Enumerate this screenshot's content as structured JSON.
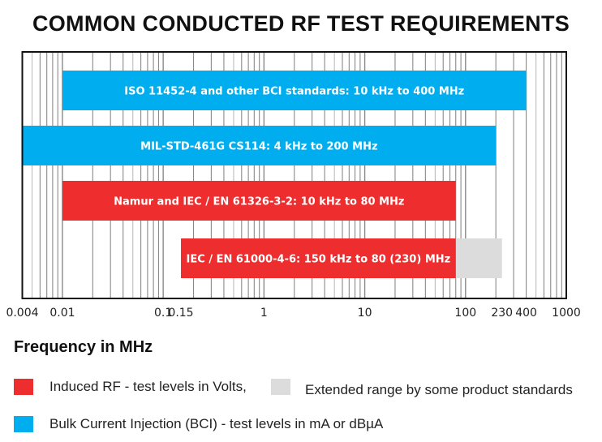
{
  "chart_data": {
    "type": "bar",
    "orientation": "horizontal-range",
    "title": "COMMON CONDUCTED RF TEST REQUIREMENTS",
    "xlabel": "Frequency in MHz",
    "xscale": "log",
    "xlim": [
      0.004,
      1000
    ],
    "xticks": [
      "0.004",
      "0.01",
      "0.1",
      "0.15",
      "1",
      "10",
      "100",
      "230",
      "400",
      "1000"
    ],
    "grid": true,
    "bars": [
      {
        "label": "ISO 11452-4 and other BCI standards: 10 kHz to 400 MHz",
        "start": 0.01,
        "end": 400,
        "category": "bci"
      },
      {
        "label": "MIL-STD-461G CS114: 4 kHz to 200 MHz",
        "start": 0.004,
        "end": 200,
        "category": "bci"
      },
      {
        "label": "Namur and IEC / EN 61326-3-2: 10 kHz to 80 MHz",
        "start": 0.01,
        "end": 80,
        "category": "induced"
      },
      {
        "label": "IEC / EN 61000-4-6: 150 kHz to 80 (230) MHz",
        "start": 0.15,
        "end": 80,
        "extended_end": 230,
        "category": "induced"
      }
    ],
    "legend": [
      {
        "key": "induced",
        "label": "Induced RF - test levels in Volts,",
        "color": "#ee2d2f"
      },
      {
        "key": "extended",
        "label": "Extended range by some product standards",
        "color": "#dcdcdc"
      },
      {
        "key": "bci",
        "label": "Bulk Current Injection (BCI) - test levels in mA or dBµA",
        "color": "#00aeef"
      }
    ],
    "legend_placement": "bottom"
  }
}
